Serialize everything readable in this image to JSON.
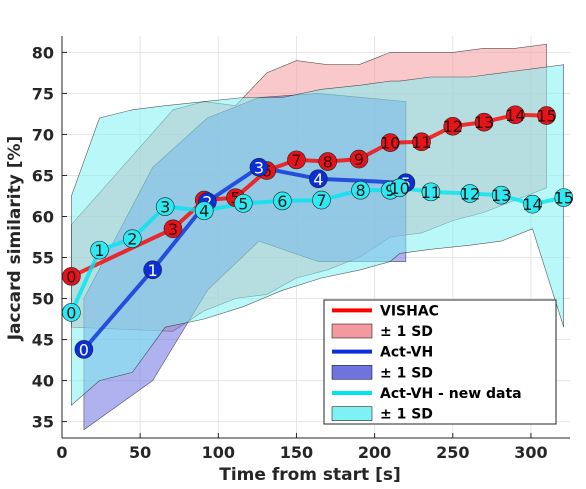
{
  "chart_data": {
    "type": "line",
    "xlabel": "Time from start [s]",
    "ylabel": "Jaccard similarity [%]",
    "xlim": [
      0,
      325
    ],
    "ylim": [
      33,
      82
    ],
    "xticks": [
      0,
      50,
      100,
      150,
      200,
      250,
      300
    ],
    "yticks": [
      35,
      40,
      45,
      50,
      55,
      60,
      65,
      70,
      75,
      80
    ],
    "grid": true,
    "legend_position": "bottom-right",
    "series": [
      {
        "name": "VISHAC",
        "band_label": "± 1 SD",
        "color": "#ff0000",
        "band_color": "#f29aa0",
        "marker_color": "#e4141b",
        "x": [
          6,
          71,
          91,
          111,
          131,
          150,
          170,
          190,
          210,
          230,
          250,
          270,
          290,
          310
        ],
        "y": [
          52.7,
          58.5,
          62.0,
          62.3,
          65.6,
          66.9,
          66.7,
          67.0,
          69.0,
          69.1,
          71.0,
          71.5,
          72.4,
          72.3
        ],
        "labels": [
          "0",
          "3",
          "4",
          "5",
          "6",
          "7",
          "8",
          "9",
          "10",
          "11",
          "12",
          "13",
          "14",
          "15"
        ],
        "upper": [
          59.0,
          73.0,
          74.0,
          73.5,
          77.5,
          79.0,
          78.5,
          78.5,
          80.0,
          80.0,
          80.0,
          80.5,
          80.5,
          81.0
        ],
        "lower": [
          46.5,
          46.0,
          48.5,
          50.0,
          50.5,
          52.5,
          53.5,
          55.0,
          57.5,
          58.0,
          59.5,
          60.5,
          62.0,
          63.5
        ]
      },
      {
        "name": "Act-VH",
        "band_label": "± 1 SD",
        "color": "#0a2fd9",
        "band_color": "#6e73e0",
        "marker_color": "#0a2fd9",
        "x": [
          14,
          58,
          93,
          126,
          164,
          220
        ],
        "y": [
          43.8,
          53.5,
          61.8,
          66.0,
          64.6,
          64.1
        ],
        "labels": [
          "0",
          "1",
          "2",
          "3",
          "4",
          "5"
        ],
        "upper": [
          50.0,
          66.0,
          72.0,
          74.5,
          75.0,
          74.0
        ],
        "lower": [
          34.0,
          40.0,
          51.0,
          57.0,
          54.5,
          54.5
        ]
      },
      {
        "name": "Act-VH - new data",
        "band_label": "± 1 SD",
        "color": "#00e6f0",
        "band_color": "#7ff0f3",
        "marker_color": "#2ee9f2",
        "x": [
          6,
          24,
          45,
          66,
          91,
          116,
          141,
          166,
          191,
          210,
          216,
          236,
          261,
          281,
          301,
          321
        ],
        "y": [
          48.3,
          55.9,
          57.3,
          61.2,
          60.7,
          61.6,
          61.9,
          62.0,
          63.2,
          63.2,
          63.5,
          63.0,
          62.8,
          62.6,
          61.5,
          62.3
        ],
        "labels": [
          "0",
          "1",
          "2",
          "3",
          "4",
          "5",
          "6",
          "7",
          "8",
          "9",
          "10",
          "11",
          "12",
          "13",
          "14",
          "15"
        ],
        "upper": [
          62.5,
          72.0,
          73.0,
          73.5,
          74.0,
          74.5,
          74.5,
          75.5,
          76.0,
          76.5,
          76.5,
          77.0,
          77.0,
          77.5,
          78.0,
          78.5
        ],
        "lower": [
          37.0,
          40.0,
          41.0,
          46.5,
          47.5,
          49.0,
          51.0,
          52.5,
          53.5,
          54.5,
          55.5,
          56.0,
          56.5,
          57.0,
          58.5,
          46.5
        ]
      }
    ]
  }
}
